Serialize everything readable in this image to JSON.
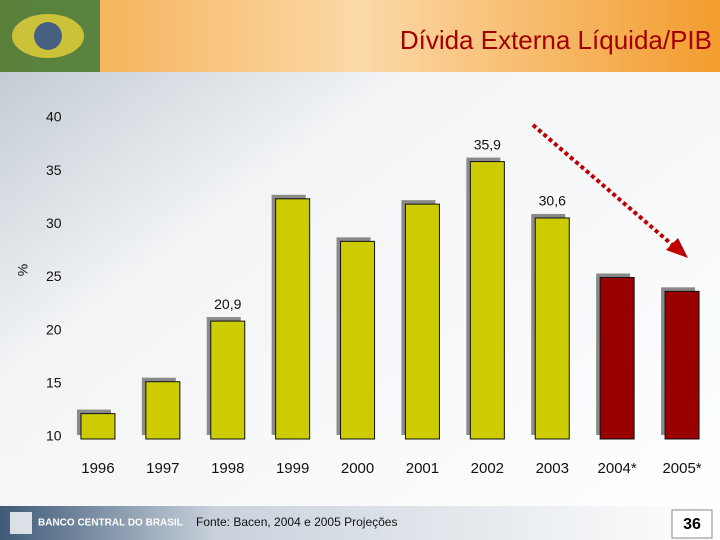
{
  "chart_data": {
    "type": "bar",
    "title": "Dívida Externa Líquida/PIB",
    "y_label": "%",
    "source": "Fonte: Bacen, 2004 e 2005 Projeções",
    "logo_text": "BANCO CENTRAL DO BRASIL",
    "page_number": "36",
    "categories": [
      "1996",
      "1997",
      "1998",
      "1999",
      "2000",
      "2001",
      "2002",
      "2003",
      "2004*",
      "2005*"
    ],
    "values": [
      12.2,
      15.2,
      20.9,
      32.4,
      28.4,
      31.9,
      35.9,
      30.6,
      25.0,
      23.7
    ],
    "value_labels": [
      null,
      null,
      "20,9",
      null,
      null,
      null,
      "35,9",
      "30,6",
      null,
      null
    ],
    "colors": [
      "#cccc00",
      "#cccc00",
      "#cccc00",
      "#cccc00",
      "#cccc00",
      "#cccc00",
      "#cccc00",
      "#cccc00",
      "#990000",
      "#990000"
    ],
    "ylim": [
      10,
      40
    ],
    "yticks": [
      10,
      15,
      20,
      25,
      30,
      35,
      40
    ],
    "grid": false
  }
}
